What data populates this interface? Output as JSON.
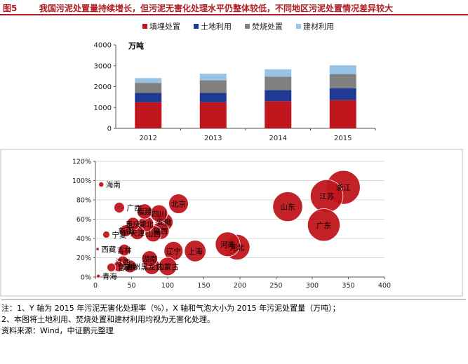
{
  "figure": {
    "number": "图5",
    "title": "我国污泥处置量持续增长，但污泥无害化处理水平仍整体较低，不同地区污泥处置情况差异较大"
  },
  "colors": {
    "landfill": "#c0161d",
    "land_use": "#1f3a93",
    "incineration": "#808080",
    "building": "#98c3e5",
    "bubble": "#c0161d",
    "title": "#b01c22"
  },
  "chart_data": [
    {
      "type": "bar",
      "stacked": true,
      "unit_label": "万吨",
      "categories": [
        "2012",
        "2013",
        "2014",
        "2015"
      ],
      "series": [
        {
          "name": "填埋处置",
          "values": [
            1250,
            1250,
            1300,
            1350
          ]
        },
        {
          "name": "土地利用",
          "values": [
            450,
            450,
            530,
            570
          ]
        },
        {
          "name": "焚烧处置",
          "values": [
            480,
            600,
            650,
            680
          ]
        },
        {
          "name": "建材利用",
          "values": [
            230,
            320,
            350,
            420
          ]
        }
      ],
      "ylim": [
        0,
        4000
      ],
      "yticks": [
        "0",
        "1000",
        "2000",
        "3000",
        "4000"
      ],
      "legend_position": "top"
    },
    {
      "type": "scatter",
      "xlim": [
        0,
        400
      ],
      "ylim": [
        0,
        1.2
      ],
      "xticks": [
        "0",
        "50",
        "100",
        "150",
        "200",
        "250",
        "300",
        "350",
        "400"
      ],
      "yticks": [
        "0%",
        "20%",
        "40%",
        "60%",
        "80%",
        "100%",
        "120%"
      ],
      "points": [
        {
          "label": "海南",
          "x": 8,
          "y": 0.96
        },
        {
          "label": "广西",
          "x": 33,
          "y": 0.72
        },
        {
          "label": "福建",
          "x": 68,
          "y": 0.68
        },
        {
          "label": "四川",
          "x": 88,
          "y": 0.66
        },
        {
          "label": "北京",
          "x": 115,
          "y": 0.76
        },
        {
          "label": "重庆",
          "x": 52,
          "y": 0.55
        },
        {
          "label": "湖北",
          "x": 70,
          "y": 0.55
        },
        {
          "label": "安徽",
          "x": 95,
          "y": 0.57
        },
        {
          "label": "新疆",
          "x": 42,
          "y": 0.48
        },
        {
          "label": "天津",
          "x": 58,
          "y": 0.46
        },
        {
          "label": "陕西",
          "x": 90,
          "y": 0.48
        },
        {
          "label": "山西",
          "x": 80,
          "y": 0.45
        },
        {
          "label": "宁夏",
          "x": 15,
          "y": 0.44
        },
        {
          "label": "西藏",
          "x": 3,
          "y": 0.29
        },
        {
          "label": "吉林",
          "x": 40,
          "y": 0.28
        },
        {
          "label": "辽宁",
          "x": 108,
          "y": 0.27
        },
        {
          "label": "上海",
          "x": 138,
          "y": 0.27
        },
        {
          "label": "河南",
          "x": 183,
          "y": 0.34
        },
        {
          "label": "河北",
          "x": 196,
          "y": 0.31
        },
        {
          "label": "江西",
          "x": 38,
          "y": 0.16
        },
        {
          "label": "湖南",
          "x": 75,
          "y": 0.19
        },
        {
          "label": "贵州",
          "x": 32,
          "y": 0.11
        },
        {
          "label": "云南",
          "x": 48,
          "y": 0.11
        },
        {
          "label": "黑龙江",
          "x": 78,
          "y": 0.11
        },
        {
          "label": "内蒙古",
          "x": 100,
          "y": 0.11
        },
        {
          "label": "青海",
          "x": 4,
          "y": 0.01
        },
        {
          "label": "甘肃",
          "x": 22,
          "y": 0.1
        },
        {
          "label": "山东",
          "x": 266,
          "y": 0.73
        },
        {
          "label": "江苏",
          "x": 320,
          "y": 0.84
        },
        {
          "label": "浙江",
          "x": 343,
          "y": 0.93
        },
        {
          "label": "广东",
          "x": 316,
          "y": 0.54
        }
      ]
    }
  ],
  "notes": [
    "注：1、Y 轴为 2015 年污泥无害化处理率（%），X 轴和气泡大小为 2015 年污泥处置量（万吨）；",
    "2、本图将土地利用、焚烧处置和建材利用均视为无害化处理。",
    "资料来源：Wind，中证鹏元整理"
  ]
}
